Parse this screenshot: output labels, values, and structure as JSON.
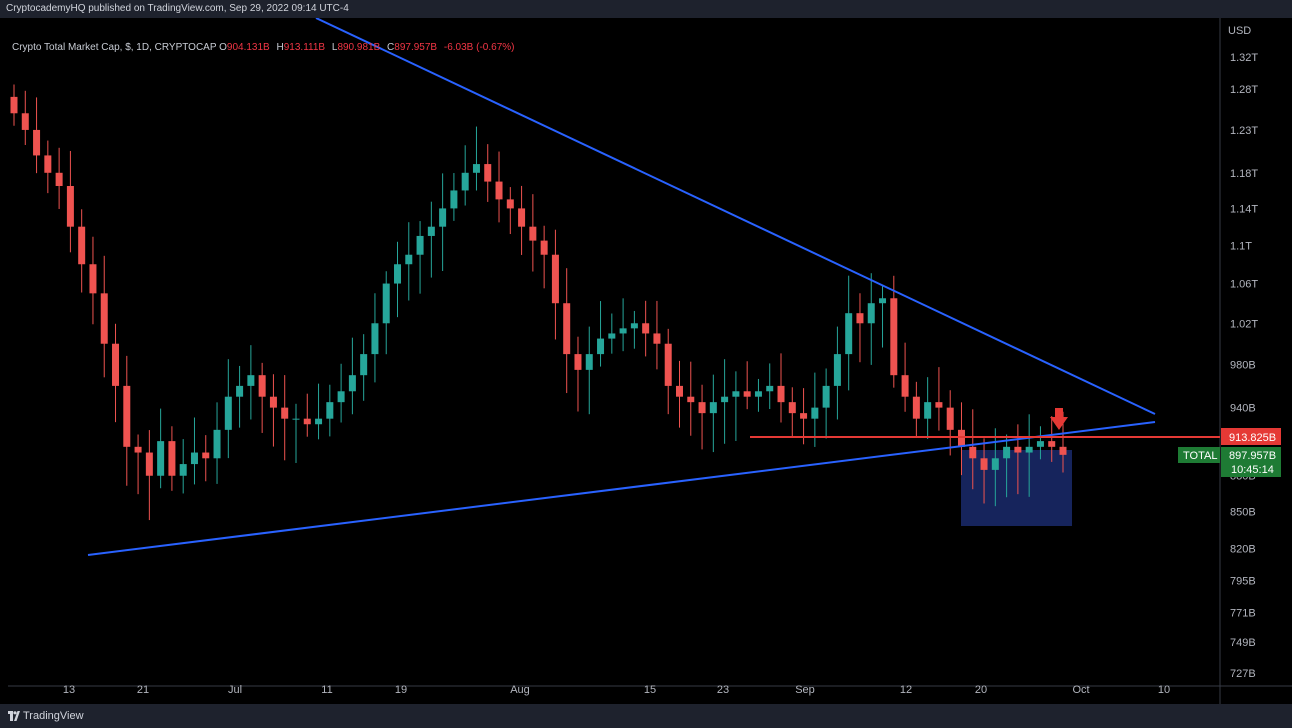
{
  "header": {
    "published_by": "CryptocademyHQ published on TradingView.com, Sep 29, 2022 09:14 UTC-4"
  },
  "legend": {
    "symbol": "Crypto Total Market Cap, $, 1D, CRYPTOCAP",
    "open_label": "O",
    "open": "904.131B",
    "high_label": "H",
    "high": "913.111B",
    "low_label": "L",
    "low": "890.981B",
    "close_label": "C",
    "close": "897.957B",
    "change": "-6.03B (-0.67%)"
  },
  "price_axis": {
    "currency": "USD",
    "labels": [
      "1.32T",
      "1.28T",
      "1.23T",
      "1.18T",
      "1.14T",
      "1.1T",
      "1.06T",
      "1.02T",
      "980B",
      "940B",
      "850B",
      "820B",
      "795B",
      "771B",
      "749B",
      "727B"
    ],
    "marker_value": "913.825B",
    "current_price": "897.957B",
    "countdown": "10:45:14",
    "series_tag": "TOTAL",
    "partial_label": "880B"
  },
  "time_axis": {
    "labels": [
      "13",
      "21",
      "Jul",
      "11",
      "19",
      "Aug",
      "15",
      "23",
      "Sep",
      "12",
      "20",
      "Oct",
      "10"
    ]
  },
  "footer": {
    "brand": "TradingView"
  },
  "colors": {
    "up": "#26a69a",
    "down": "#ef5350",
    "trendline": "#2962ff",
    "resistance": "#e53935",
    "zone": "#1a2a6c"
  },
  "chart_data": {
    "type": "candlestick",
    "title": "Crypto Total Market Cap, $, 1D, CRYPTOCAP",
    "timeframe": "1D",
    "date_range": [
      "2022-06-04",
      "2022-09-29"
    ],
    "ylim_labels": [
      "727B",
      "1.32T"
    ],
    "y_scale": "log",
    "candle_closes_B": [
      1250,
      1230,
      1200,
      1180,
      1165,
      1120,
      1080,
      1050,
      1000,
      960,
      905,
      900,
      880,
      910,
      880,
      890,
      900,
      895,
      920,
      950,
      960,
      970,
      950,
      940,
      930,
      930,
      925,
      930,
      945,
      955,
      970,
      990,
      1020,
      1060,
      1080,
      1090,
      1110,
      1120,
      1140,
      1160,
      1180,
      1190,
      1170,
      1150,
      1140,
      1120,
      1105,
      1090,
      1040,
      990,
      975,
      990,
      1005,
      1010,
      1015,
      1020,
      1010,
      1000,
      960,
      950,
      945,
      935,
      945,
      950,
      955,
      950,
      955,
      960,
      945,
      935,
      930,
      940,
      960,
      990,
      1030,
      1020,
      1040,
      1045,
      970,
      950,
      930,
      945,
      940,
      920,
      905,
      895,
      885,
      895,
      905,
      900,
      905,
      910,
      905,
      898
    ],
    "annotations": [
      {
        "type": "trendline",
        "name": "descending resistance"
      },
      {
        "type": "trendline",
        "name": "ascending support"
      },
      {
        "type": "horizontal",
        "value": "913.825B"
      },
      {
        "type": "zone",
        "name": "consolidation box"
      },
      {
        "type": "arrow",
        "direction": "down"
      }
    ]
  }
}
